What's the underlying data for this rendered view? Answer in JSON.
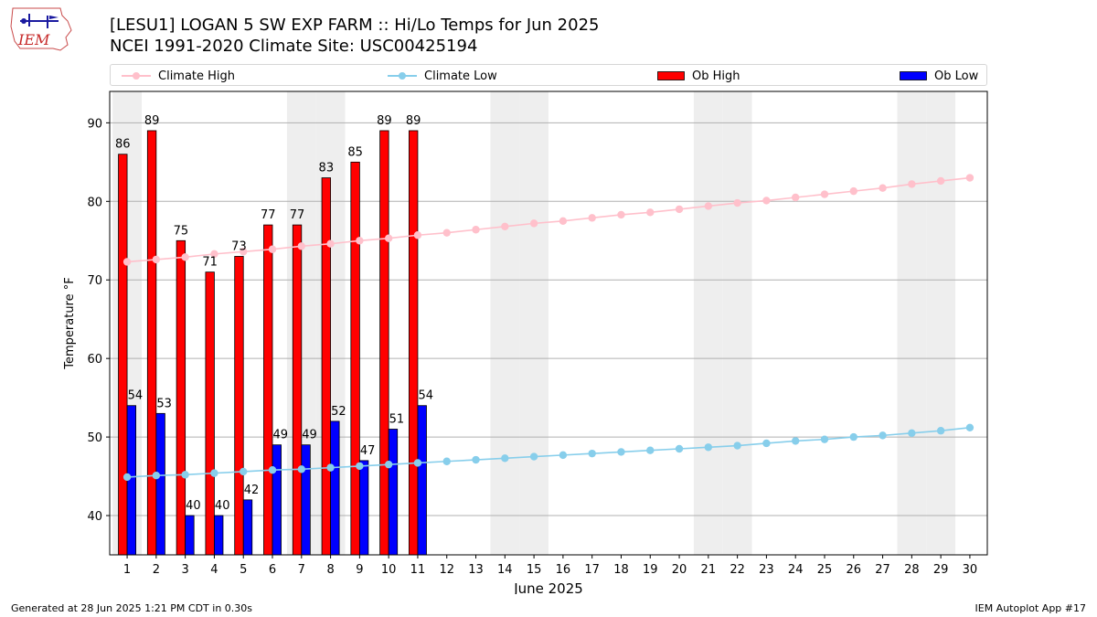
{
  "header": {
    "title": "[LESU1] LOGAN 5 SW EXP FARM :: Hi/Lo Temps for Jun 2025",
    "subtitle": "NCEI 1991-2020 Climate Site: USC00425194",
    "logo_text": "IEM"
  },
  "legend": [
    {
      "label": "Climate High",
      "color": "#ffc0cb",
      "kind": "line"
    },
    {
      "label": "Climate Low",
      "color": "#87ceeb",
      "kind": "line"
    },
    {
      "label": "Ob High",
      "color": "#ff0000",
      "kind": "bar"
    },
    {
      "label": "Ob Low",
      "color": "#0000ff",
      "kind": "bar"
    }
  ],
  "footer": {
    "left": "Generated at 28 Jun 2025 1:21 PM CDT in 0.30s",
    "right": "IEM Autoplot App #17"
  },
  "chart_data": {
    "type": "bar",
    "xlabel": "June 2025",
    "ylabel": "Temperature °F",
    "ylim": [
      35,
      94
    ],
    "yticks": [
      40,
      50,
      60,
      70,
      80,
      90
    ],
    "grid": "horizontal",
    "weekend_shading_days": [
      1,
      7,
      8,
      14,
      15,
      21,
      22,
      28,
      29
    ],
    "days": [
      1,
      2,
      3,
      4,
      5,
      6,
      7,
      8,
      9,
      10,
      11,
      12,
      13,
      14,
      15,
      16,
      17,
      18,
      19,
      20,
      21,
      22,
      23,
      24,
      25,
      26,
      27,
      28,
      29,
      30
    ],
    "ob_high": [
      86,
      89,
      75,
      71,
      73,
      77,
      77,
      83,
      85,
      89,
      89
    ],
    "ob_low": [
      54,
      53,
      40,
      40,
      42,
      49,
      49,
      52,
      47,
      51,
      54
    ],
    "climate_high": [
      72.3,
      72.6,
      72.9,
      73.3,
      73.6,
      73.9,
      74.3,
      74.6,
      75.0,
      75.3,
      75.7,
      76.0,
      76.4,
      76.8,
      77.2,
      77.5,
      77.9,
      78.3,
      78.6,
      79.0,
      79.4,
      79.8,
      80.1,
      80.5,
      80.9,
      81.3,
      81.7,
      82.2,
      82.6,
      83.0
    ],
    "climate_low": [
      44.9,
      45.1,
      45.2,
      45.4,
      45.6,
      45.8,
      45.9,
      46.1,
      46.3,
      46.5,
      46.7,
      46.9,
      47.1,
      47.3,
      47.5,
      47.7,
      47.9,
      48.1,
      48.3,
      48.5,
      48.7,
      48.9,
      49.2,
      49.5,
      49.7,
      50.0,
      50.2,
      50.5,
      50.8,
      51.2
    ]
  }
}
